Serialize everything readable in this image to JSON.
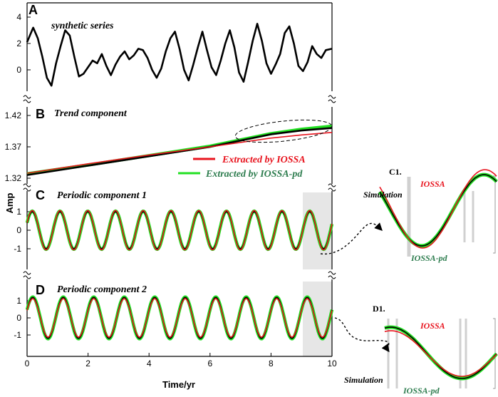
{
  "colors": {
    "black": "#000000",
    "red": "#e8141e",
    "green": "#22e022",
    "darkgreen": "#2e7d4f",
    "shade": "#e6e6e6"
  },
  "figure": {
    "ylabel": "Amp",
    "xlabel": "Time/yr",
    "x_ticks": [
      "0",
      "2",
      "4",
      "6",
      "8",
      "10"
    ]
  },
  "panels": {
    "A": {
      "letter": "A",
      "title": "synthetic series",
      "y_ticks": [
        "0",
        "2",
        "4"
      ]
    },
    "B": {
      "letter": "B",
      "title": "Trend component",
      "y_ticks": [
        "1.32",
        "1.37",
        "1.42"
      ],
      "legend": [
        "Extracted by IOSSA",
        "Extracted by IOSSA-pd"
      ]
    },
    "C": {
      "letter": "C",
      "title": "Periodic component 1",
      "y_ticks": [
        "-1",
        "0",
        "1"
      ]
    },
    "D": {
      "letter": "D",
      "title": "Periodic component 2",
      "y_ticks": [
        "-1",
        "0",
        "1"
      ]
    }
  },
  "insets": {
    "C1": {
      "label": "C1.",
      "simulation": "Simulation",
      "iossa": "IOSSA",
      "iossapd": "IOSSA-pd"
    },
    "D1": {
      "label": "D1.",
      "simulation": "Simulation",
      "iossa": "IOSSA",
      "iossapd": "IOSSA-pd"
    }
  },
  "chart_data": [
    {
      "type": "line",
      "panel": "A",
      "title": "synthetic series",
      "xlim": [
        0,
        10
      ],
      "ylim": [
        -1.6,
        4
      ],
      "series": [
        {
          "color": "#000000",
          "x": [
            0,
            0.2,
            0.35,
            0.5,
            0.65,
            0.8,
            0.95,
            1.1,
            1.25,
            1.4,
            1.55,
            1.7,
            1.85,
            2.0,
            2.15,
            2.3,
            2.45,
            2.6,
            2.75,
            2.9,
            3.05,
            3.2,
            3.35,
            3.5,
            3.65,
            3.8,
            3.95,
            4.1,
            4.25,
            4.4,
            4.55,
            4.7,
            4.85,
            5.0,
            5.15,
            5.3,
            5.45,
            5.6,
            5.75,
            5.9,
            6.05,
            6.2,
            6.35,
            6.5,
            6.65,
            6.8,
            6.95,
            7.1,
            7.25,
            7.4,
            7.55,
            7.7,
            7.85,
            8.0,
            8.15,
            8.3,
            8.45,
            8.6,
            8.75,
            8.9,
            9.05,
            9.2,
            9.35,
            9.5,
            9.65,
            9.8,
            10.0
          ],
          "y": [
            2.1,
            3.2,
            2.4,
            1.0,
            -0.6,
            -1.2,
            0.5,
            1.8,
            3.0,
            2.6,
            1.0,
            -0.5,
            -0.3,
            0.2,
            0.7,
            0.5,
            1.2,
            0.3,
            -0.4,
            0.4,
            1.0,
            1.4,
            0.8,
            1.1,
            1.6,
            1.5,
            0.9,
            0.0,
            -0.6,
            0.1,
            1.4,
            2.4,
            2.9,
            1.6,
            0.0,
            -0.8,
            0.4,
            1.7,
            2.9,
            1.5,
            0.2,
            -0.4,
            0.7,
            2.0,
            3.0,
            1.7,
            -0.2,
            -0.9,
            0.6,
            2.2,
            3.5,
            2.2,
            0.5,
            -0.3,
            0.4,
            1.2,
            2.8,
            3.3,
            2.0,
            0.3,
            -0.1,
            0.6,
            1.8,
            1.2,
            0.9,
            1.5,
            1.6
          ]
        }
      ]
    },
    {
      "type": "line",
      "panel": "B",
      "title": "Trend component",
      "xlim": [
        0,
        10
      ],
      "ylim": [
        1.31,
        1.435
      ],
      "series": [
        {
          "color": "#000000",
          "x": [
            0,
            2,
            4,
            6,
            8,
            9,
            10
          ],
          "y": [
            1.325,
            1.34,
            1.355,
            1.37,
            1.39,
            1.396,
            1.4
          ]
        },
        {
          "name": "Extracted by IOSSA-pd",
          "color": "#22e022",
          "x": [
            0,
            2,
            4,
            6,
            8,
            9,
            10
          ],
          "y": [
            1.327,
            1.341,
            1.356,
            1.371,
            1.391,
            1.398,
            1.403
          ]
        },
        {
          "name": "Extracted by IOSSA",
          "color": "#e8141e",
          "x": [
            0,
            2,
            4,
            6,
            8,
            9,
            10
          ],
          "y": [
            1.328,
            1.343,
            1.357,
            1.37,
            1.384,
            1.389,
            1.393
          ]
        }
      ]
    },
    {
      "type": "line",
      "panel": "C",
      "title": "Periodic component 1",
      "xlim": [
        0,
        10
      ],
      "ylim": [
        -1.6,
        1.6
      ],
      "series": [
        {
          "color": "#000000",
          "amplitude": 1.0,
          "period_yr": 0.91
        },
        {
          "color": "#22e022",
          "amplitude": 1.03,
          "period_yr": 0.91
        },
        {
          "color": "#e8141e",
          "amplitude": 1.06,
          "period_yr": 0.91
        }
      ]
    },
    {
      "type": "line",
      "panel": "D",
      "title": "Periodic component 2",
      "xlim": [
        0,
        10
      ],
      "ylim": [
        -1.6,
        1.6
      ],
      "series": [
        {
          "color": "#000000",
          "amplitude": 1.2,
          "period_yr": 1.0
        },
        {
          "color": "#22e022",
          "amplitude": 1.22,
          "period_yr": 1.0
        },
        {
          "color": "#e8141e",
          "amplitude": 1.12,
          "period_yr": 1.0
        }
      ]
    }
  ]
}
